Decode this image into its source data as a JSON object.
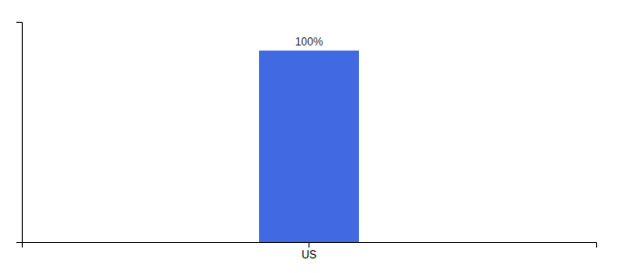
{
  "chart_data": {
    "type": "bar",
    "categories": [
      "US"
    ],
    "values": [
      100
    ],
    "color": "#4169e1",
    "ylim": [
      0,
      115
    ],
    "data_labels": true,
    "value_labels": [
      "100%"
    ],
    "tick_labels": "x"
  }
}
